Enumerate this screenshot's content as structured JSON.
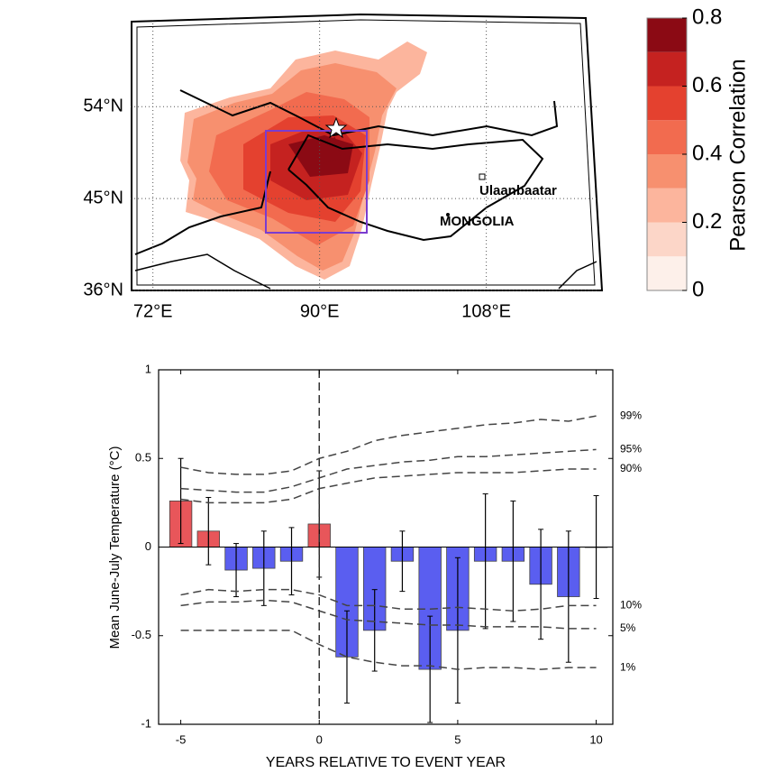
{
  "chart_data": [
    {
      "type": "map",
      "xlim": [
        69.6,
        120.2
      ],
      "ylim": [
        36,
        62.5
      ],
      "xticks": [
        {
          "value": 72,
          "label": "72°E"
        },
        {
          "value": 90,
          "label": "90°E"
        },
        {
          "value": 108,
          "label": "108°E"
        }
      ],
      "yticks": [
        {
          "value": 36,
          "label": "36°N"
        },
        {
          "value": 45,
          "label": "45°N"
        },
        {
          "value": 54,
          "label": "54°N"
        }
      ],
      "places": [
        "Ulaanbaatar",
        "MONGOLIA"
      ],
      "colorbar": {
        "label": "Pearson Correlation",
        "lim": [
          0,
          0.8
        ],
        "ticks": [
          0,
          0.2,
          0.4,
          0.6,
          0.8
        ],
        "colors": [
          "#fdf0ea",
          "#fcd6c8",
          "#fcb59d",
          "#f7906f",
          "#f26b4f",
          "#e4412f",
          "#c52220",
          "#8b0a14"
        ]
      }
    },
    {
      "type": "bar",
      "x": [
        -5,
        -4,
        -3,
        -2,
        -1,
        0,
        1,
        2,
        3,
        4,
        5,
        6,
        7,
        8,
        9,
        10
      ],
      "xlim": [
        -5.8,
        10.6
      ],
      "ylim": [
        -1,
        1
      ],
      "xticks": [
        -5,
        0,
        5,
        10
      ],
      "yticks": [
        -1,
        -0.5,
        0,
        0.5,
        1
      ],
      "xlabel": "YEARS RELATIVE TO EVENT YEAR",
      "ylabel": "Mean June-July Temperature (°C)",
      "vline": 0,
      "positive_color": "#e8565a",
      "negative_color": "#5a5ef0",
      "series": [
        {
          "values": [
            0.26,
            0.09,
            -0.13,
            -0.12,
            -0.08,
            0.13,
            -0.62,
            -0.47,
            -0.08,
            -0.69,
            -0.47,
            -0.08,
            -0.08,
            -0.21,
            -0.28,
            0.0
          ],
          "errors": [
            0.24,
            0.19,
            0.15,
            0.21,
            0.19,
            0.3,
            0.26,
            0.23,
            0.17,
            0.3,
            0.41,
            0.38,
            0.34,
            0.31,
            0.37,
            0.29
          ]
        },
        {
          "name": "99%",
          "values": [
            0.45,
            0.42,
            0.41,
            0.41,
            0.43,
            0.5,
            0.54,
            0.6,
            0.63,
            0.65,
            0.67,
            0.69,
            0.7,
            0.72,
            0.71,
            0.74
          ]
        },
        {
          "name": "95%",
          "values": [
            0.33,
            0.32,
            0.31,
            0.31,
            0.34,
            0.39,
            0.44,
            0.46,
            0.48,
            0.49,
            0.51,
            0.51,
            0.52,
            0.53,
            0.54,
            0.55
          ]
        },
        {
          "name": "90%",
          "values": [
            0.27,
            0.25,
            0.25,
            0.25,
            0.27,
            0.33,
            0.36,
            0.39,
            0.4,
            0.41,
            0.42,
            0.42,
            0.42,
            0.43,
            0.44,
            0.44
          ]
        },
        {
          "name": "10%",
          "values": [
            -0.27,
            -0.24,
            -0.25,
            -0.24,
            -0.24,
            -0.27,
            -0.33,
            -0.33,
            -0.35,
            -0.35,
            -0.34,
            -0.35,
            -0.36,
            -0.35,
            -0.33,
            -0.33
          ]
        },
        {
          "name": "5%",
          "values": [
            -0.33,
            -0.31,
            -0.31,
            -0.3,
            -0.31,
            -0.36,
            -0.41,
            -0.42,
            -0.43,
            -0.44,
            -0.44,
            -0.45,
            -0.45,
            -0.45,
            -0.46,
            -0.46
          ]
        },
        {
          "name": "1%",
          "values": [
            -0.47,
            -0.47,
            -0.47,
            -0.47,
            -0.47,
            -0.55,
            -0.62,
            -0.65,
            -0.67,
            -0.67,
            -0.69,
            -0.68,
            -0.68,
            -0.69,
            -0.68,
            -0.68
          ]
        }
      ]
    }
  ]
}
